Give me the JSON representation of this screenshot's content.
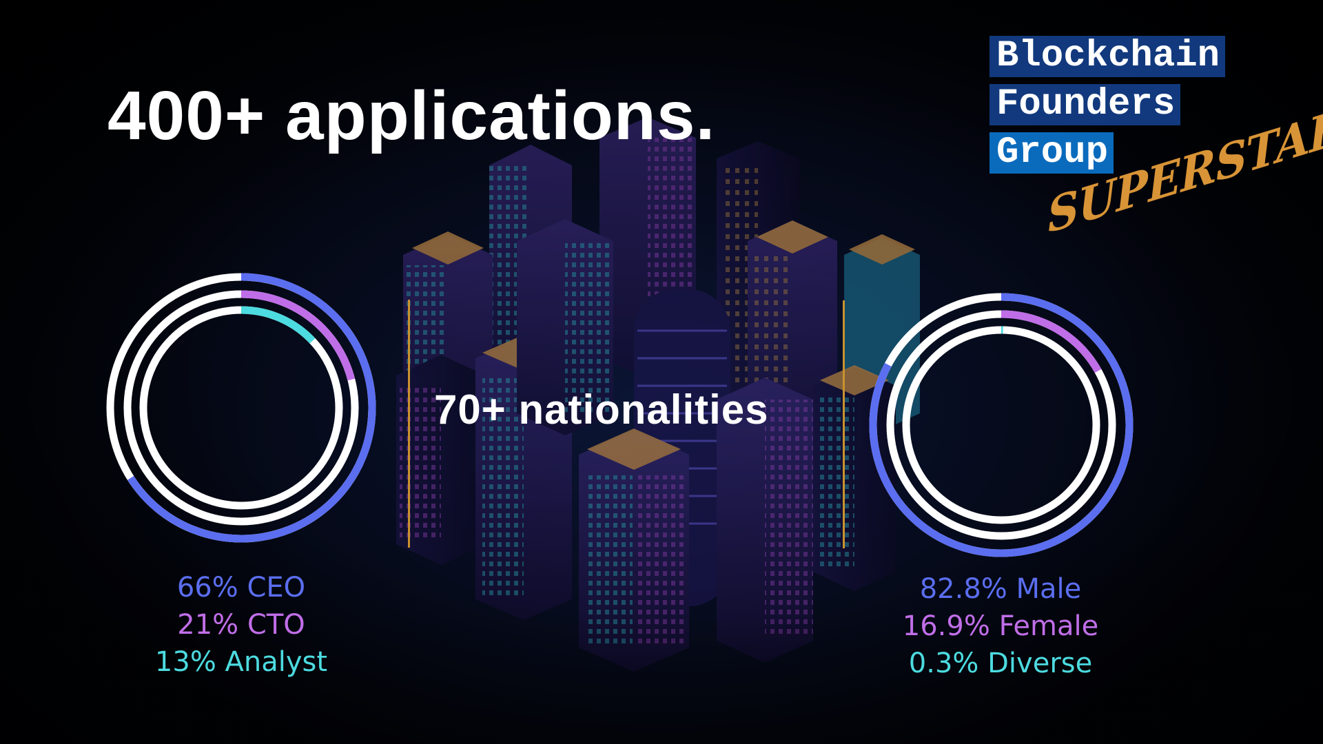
{
  "headline": "400+ applications.",
  "nationalities": "70+ nationalities",
  "logo": {
    "line1": "Blockchain",
    "line2": "Founders",
    "line3": "Group",
    "script": "SUPERSTARS",
    "colors": {
      "dark_blue": "#12397d",
      "light_blue": "#0a6bbd",
      "gold": "#d89436"
    }
  },
  "chart_data": [
    {
      "type": "pie",
      "variant": "concentric-ring",
      "categories": [
        "CEO",
        "CTO",
        "Analyst"
      ],
      "values": [
        66,
        21,
        13
      ],
      "unit": "%",
      "colors": [
        "#5b6ef0",
        "#c06ee8",
        "#4cdbe0"
      ],
      "labels": [
        "66% CEO",
        "21% CTO",
        "13% Analyst"
      ]
    },
    {
      "type": "pie",
      "variant": "concentric-ring",
      "categories": [
        "Male",
        "Female",
        "Diverse"
      ],
      "values": [
        82.8,
        16.9,
        0.3
      ],
      "unit": "%",
      "colors": [
        "#5b6ef0",
        "#c06ee8",
        "#4cdbe0"
      ],
      "labels": [
        "82.8% Male",
        "16.9% Female",
        "0.3% Diverse"
      ]
    }
  ]
}
